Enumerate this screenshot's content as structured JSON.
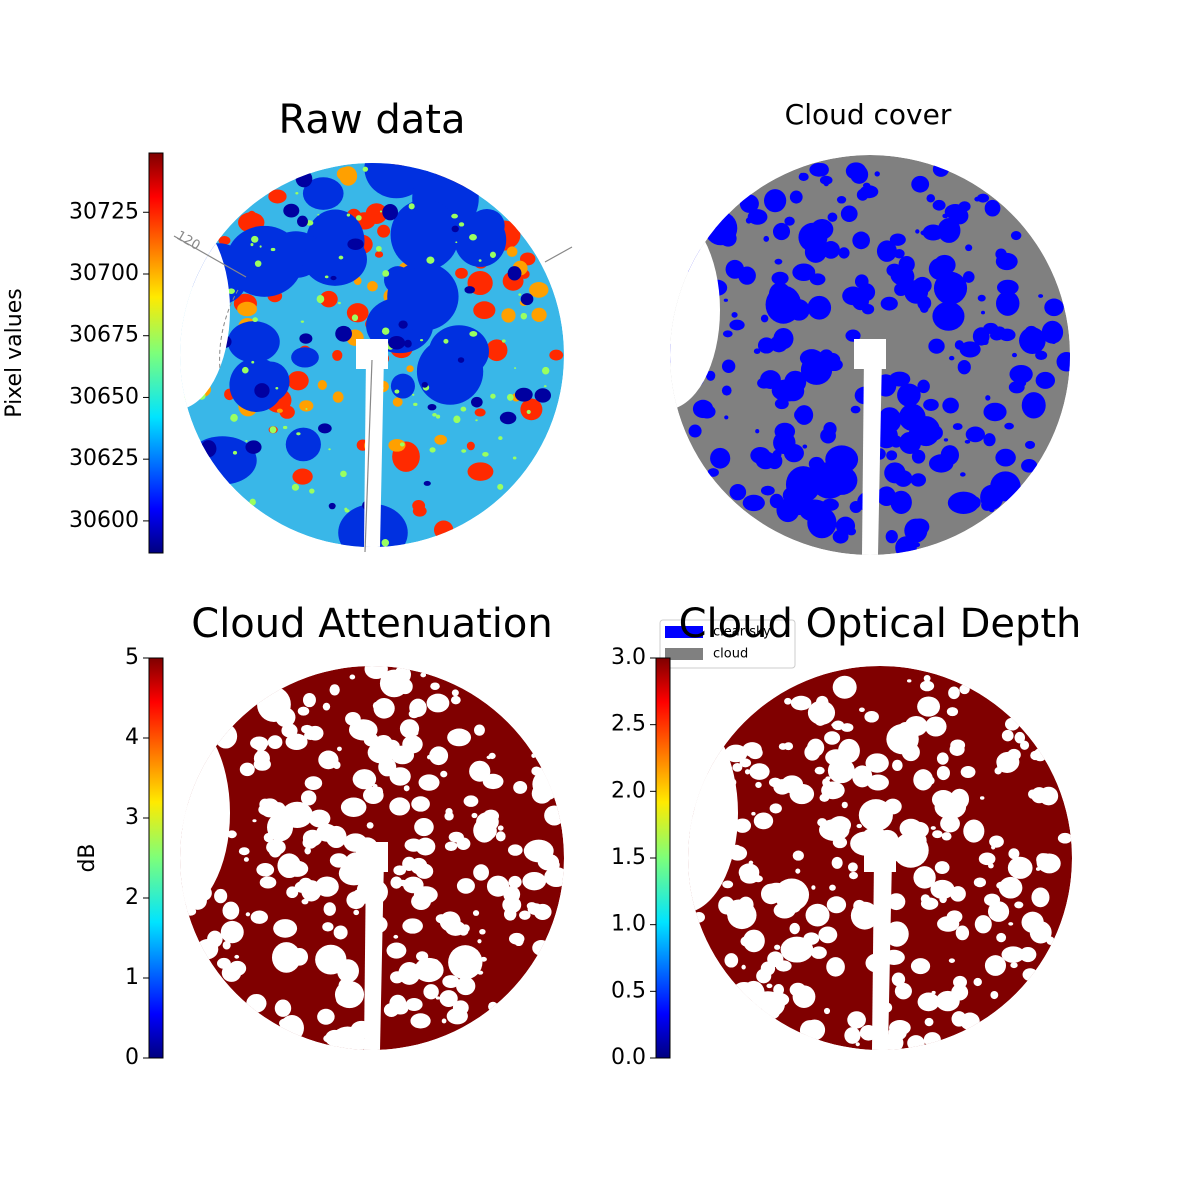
{
  "chart_data": [
    {
      "type": "image",
      "title": "Raw data",
      "colorbar": {
        "label": "Pixel values",
        "colormap": "jet",
        "lim": [
          30587,
          30749
        ],
        "ticks": [
          30600,
          30625,
          30650,
          30675,
          30700,
          30725
        ]
      },
      "annotations": [
        "120"
      ]
    },
    {
      "type": "image",
      "title": "Cloud cover",
      "series": [
        {
          "name": "clear sky",
          "color": "#0000ff"
        },
        {
          "name": "cloud",
          "color": "#808080"
        }
      ]
    },
    {
      "type": "image",
      "title": "Cloud Attenuation",
      "colorbar": {
        "label": "dB",
        "colormap": "jet",
        "lim": [
          0,
          5
        ],
        "ticks": [
          0,
          1,
          2,
          3,
          4,
          5
        ]
      }
    },
    {
      "type": "image",
      "title": "Cloud Optical Depth",
      "colorbar": {
        "colormap": "jet",
        "lim": [
          0,
          3
        ],
        "ticks": [
          {
            "value": 0,
            "label": "0.0"
          },
          0.5,
          {
            "value": 1,
            "label": "1.0"
          },
          1.5,
          {
            "value": 2,
            "label": "2.0"
          },
          2.5,
          {
            "value": 3,
            "label": "3.0"
          }
        ]
      }
    }
  ]
}
